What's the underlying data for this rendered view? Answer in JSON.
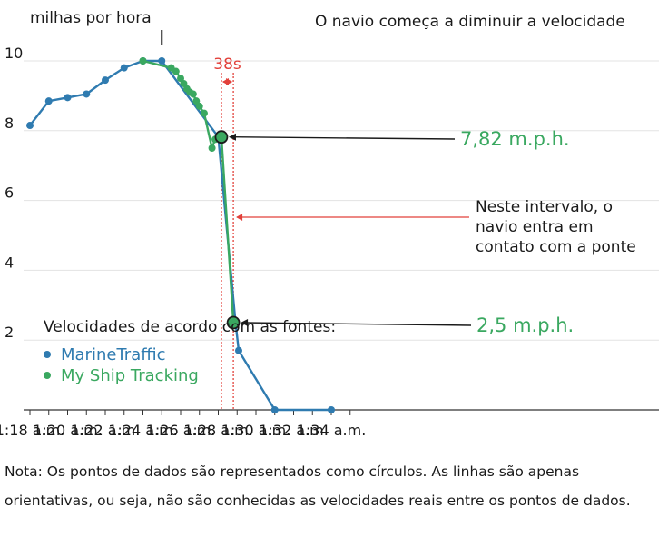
{
  "chart_data": {
    "type": "line",
    "ylabel": "milhas por hora",
    "yticks": [
      2,
      4,
      6,
      8,
      10
    ],
    "ylim": [
      0,
      11
    ],
    "xlim": [
      "1:18",
      "1:35"
    ],
    "xtick_labels": [
      "1:18 a.m.",
      "1:20 a.m.",
      "1:22 a.m.",
      "1:24 a.m.",
      "1:26 a.m.",
      "1:28 a.m.",
      "1:30 a.m.",
      "1:32 a.m.",
      "1:34 a.m."
    ],
    "xticks_minutes": [
      18,
      20,
      22,
      24,
      26,
      28,
      30,
      32,
      34
    ],
    "series": [
      {
        "name": "MarineTraffic",
        "color": "#2f7bb0",
        "points": [
          {
            "x": "1:18:00",
            "y": 8.15
          },
          {
            "x": "1:19:00",
            "y": 8.85
          },
          {
            "x": "1:20:00",
            "y": 8.95
          },
          {
            "x": "1:21:00",
            "y": 9.05
          },
          {
            "x": "1:22:00",
            "y": 9.45
          },
          {
            "x": "1:23:00",
            "y": 9.8
          },
          {
            "x": "1:24:00",
            "y": 10.0
          },
          {
            "x": "1:25:00",
            "y": 10.0
          },
          {
            "x": "1:28:00",
            "y": 7.82
          },
          {
            "x": "1:28:55",
            "y": 2.5
          },
          {
            "x": "1:29:05",
            "y": 1.7
          },
          {
            "x": "1:31:00",
            "y": 0.0
          },
          {
            "x": "1:34:00",
            "y": 0.0
          }
        ]
      },
      {
        "name": "My Ship Tracking",
        "color": "#3aa860",
        "points": [
          {
            "x": "1:24:00",
            "y": 10.0
          },
          {
            "x": "1:25:30",
            "y": 9.8
          },
          {
            "x": "1:25:45",
            "y": 9.7
          },
          {
            "x": "1:26:00",
            "y": 9.5
          },
          {
            "x": "1:26:10",
            "y": 9.35
          },
          {
            "x": "1:26:20",
            "y": 9.2
          },
          {
            "x": "1:26:30",
            "y": 9.1
          },
          {
            "x": "1:26:40",
            "y": 9.05
          },
          {
            "x": "1:26:50",
            "y": 8.85
          },
          {
            "x": "1:27:00",
            "y": 8.7
          },
          {
            "x": "1:27:15",
            "y": 8.5
          },
          {
            "x": "1:27:40",
            "y": 7.5
          },
          {
            "x": "1:27:50",
            "y": 7.75
          },
          {
            "x": "1:28:10",
            "y": 7.82
          },
          {
            "x": "1:28:48",
            "y": 2.5
          }
        ]
      }
    ],
    "highlight_points": [
      {
        "x": "1:28:10",
        "y": 7.82,
        "label": "7,82 m.p.h."
      },
      {
        "x": "1:28:48",
        "y": 2.5,
        "label": "2,5 m.p.h."
      }
    ],
    "annotations": {
      "slowdown": {
        "x": "1:25:00",
        "text": "O navio começa a diminuir a velocidade"
      },
      "interval_label": "38s",
      "interval_start": "1:28:10",
      "interval_end": "1:28:48",
      "contact_lines": [
        "Neste intervalo, o",
        "navio entra em",
        "contato com a ponte"
      ]
    },
    "legend": {
      "title": "Velocidades de acordo com as fontes:",
      "placement": "bottom-left"
    },
    "grid": true,
    "colors": {
      "blue": "#2f7bb0",
      "green": "#3aa860",
      "red": "#e2403a"
    }
  },
  "note": "Nota: Os pontos de dados são representados como círculos. As linhas são apenas orientativas, ou seja, não são conhecidas as velocidades reais entre os pontos de dados."
}
